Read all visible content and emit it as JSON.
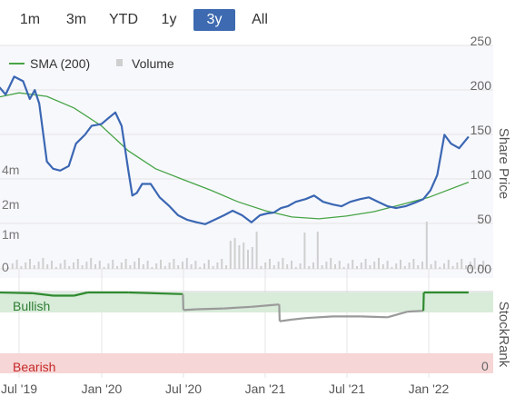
{
  "range_tabs": [
    {
      "label": "1m",
      "active": false
    },
    {
      "label": "3m",
      "active": false
    },
    {
      "label": "YTD",
      "active": false
    },
    {
      "label": "1y",
      "active": false
    },
    {
      "label": "3y",
      "active": true
    },
    {
      "label": "All",
      "active": false
    }
  ],
  "colors": {
    "price": "#3b67b3",
    "sma": "#47a447",
    "volume": "#cfcfcf",
    "rank": "#9a9a9a",
    "rank_bull": "#2f8a2f",
    "bull_band": "#d8ecd9",
    "bear_band": "#f6d6d6",
    "active_tab": "#3d6ab0"
  },
  "chart_data": [
    {
      "type": "line",
      "title": "",
      "x_axis": {
        "labels": [
          "Jul '19",
          "Jan '20",
          "Jul '20",
          "Jan '21",
          "Jul '21",
          "Jan '22"
        ],
        "dates": [
          "2019-07",
          "2020-01",
          "2020-07",
          "2021-01",
          "2021-07",
          "2022-01"
        ]
      },
      "y_axis_right": {
        "label": "Share Price",
        "ticks": [
          "250",
          "200",
          "150",
          "100",
          "50",
          "0.00"
        ],
        "ylim": [
          0,
          250
        ]
      },
      "y_axis_left_volume": {
        "ticks": [
          "4m",
          "2m",
          "1m",
          "0"
        ]
      },
      "legend": {
        "position": "top-left",
        "entries": [
          "SMA (200)",
          "Volume"
        ]
      },
      "series": [
        {
          "name": "Share price",
          "x": [
            "2019-05-15",
            "2019-06-01",
            "2019-06-20",
            "2019-07-10",
            "2019-07-25",
            "2019-08-05",
            "2019-08-15",
            "2019-09-01",
            "2019-09-15",
            "2019-10-01",
            "2019-10-20",
            "2019-11-05",
            "2019-11-25",
            "2019-12-10",
            "2020-01-01",
            "2020-01-15",
            "2020-02-01",
            "2020-02-15",
            "2020-03-01",
            "2020-03-10",
            "2020-03-20",
            "2020-04-01",
            "2020-04-20",
            "2020-05-10",
            "2020-06-01",
            "2020-06-20",
            "2020-07-10",
            "2020-08-01",
            "2020-08-20",
            "2020-09-10",
            "2020-10-01",
            "2020-10-20",
            "2020-11-10",
            "2020-12-01",
            "2020-12-20",
            "2021-01-05",
            "2021-01-20",
            "2021-02-05",
            "2021-02-20",
            "2021-03-10",
            "2021-04-01",
            "2021-04-20",
            "2021-05-10",
            "2021-06-01",
            "2021-06-20",
            "2021-07-10",
            "2021-08-01",
            "2021-08-20",
            "2021-09-10",
            "2021-10-01",
            "2021-10-20",
            "2021-11-10",
            "2021-12-01",
            "2021-12-20",
            "2022-01-05",
            "2022-01-20",
            "2022-02-05",
            "2022-02-20",
            "2022-03-10",
            "2022-03-31"
          ],
          "values": [
            205,
            195,
            215,
            210,
            190,
            200,
            185,
            120,
            112,
            110,
            115,
            140,
            150,
            160,
            162,
            168,
            175,
            160,
            110,
            82,
            85,
            95,
            95,
            80,
            70,
            60,
            55,
            52,
            50,
            55,
            60,
            65,
            60,
            52,
            60,
            62,
            63,
            68,
            70,
            75,
            78,
            82,
            75,
            72,
            70,
            75,
            78,
            80,
            75,
            70,
            68,
            70,
            74,
            78,
            88,
            105,
            150,
            140,
            135,
            148
          ]
        },
        {
          "name": "SMA (200)",
          "x": [
            "2019-05-15",
            "2019-07-01",
            "2019-09-01",
            "2019-11-01",
            "2020-01-01",
            "2020-03-01",
            "2020-05-01",
            "2020-07-01",
            "2020-09-01",
            "2020-11-01",
            "2021-01-01",
            "2021-03-01",
            "2021-05-01",
            "2021-07-01",
            "2021-09-01",
            "2021-11-01",
            "2022-01-01",
            "2022-03-31"
          ],
          "values": [
            192,
            197,
            193,
            180,
            160,
            132,
            112,
            100,
            88,
            75,
            65,
            58,
            56,
            59,
            64,
            72,
            80,
            97
          ]
        }
      ]
    },
    {
      "type": "line",
      "title": "",
      "y_axis_right": {
        "label": "StockRank",
        "ticks": [
          "0"
        ]
      },
      "bands": [
        {
          "label": "Bullish"
        },
        {
          "label": "Bearish"
        }
      ],
      "series": [
        {
          "name": "StockRank",
          "x": [
            "2019-05-15",
            "2019-08-01",
            "2019-09-15",
            "2019-11-01",
            "2019-12-01",
            "2020-03-01",
            "2020-07-01",
            "2020-07-02",
            "2020-08-01",
            "2020-10-01",
            "2020-12-01",
            "2021-01-10",
            "2021-02-01",
            "2021-02-02",
            "2021-03-01",
            "2021-04-01",
            "2021-06-01",
            "2021-08-01",
            "2021-10-01",
            "2021-11-15",
            "2021-12-20",
            "2021-12-21",
            "2022-03-31"
          ],
          "values": [
            100,
            99,
            96,
            96,
            100,
            100,
            98,
            78,
            79,
            80,
            82,
            84,
            85,
            64,
            66,
            68,
            70,
            70,
            69,
            76,
            77,
            100,
            100
          ]
        }
      ]
    }
  ]
}
